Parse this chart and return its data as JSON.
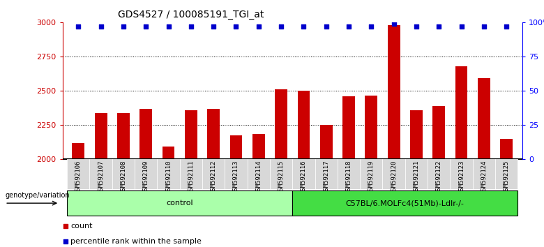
{
  "title": "GDS4527 / 100085191_TGI_at",
  "samples": [
    "GSM592106",
    "GSM592107",
    "GSM592108",
    "GSM592109",
    "GSM592110",
    "GSM592111",
    "GSM592112",
    "GSM592113",
    "GSM592114",
    "GSM592115",
    "GSM592116",
    "GSM592117",
    "GSM592118",
    "GSM592119",
    "GSM592120",
    "GSM592121",
    "GSM592122",
    "GSM592123",
    "GSM592124",
    "GSM592125"
  ],
  "counts": [
    2120,
    2340,
    2340,
    2370,
    2095,
    2360,
    2370,
    2175,
    2185,
    2510,
    2500,
    2250,
    2460,
    2465,
    2980,
    2360,
    2390,
    2680,
    2590,
    2150
  ],
  "percentile_ranks": [
    97,
    97,
    97,
    97,
    97,
    97,
    97,
    97,
    97,
    97,
    97,
    97,
    97,
    97,
    99,
    97,
    97,
    97,
    97,
    97
  ],
  "group_labels": [
    "control",
    "C57BL/6.MOLFc4(51Mb)-Ldlr-/-"
  ],
  "group_ranges": [
    [
      0,
      10
    ],
    [
      10,
      20
    ]
  ],
  "group_colors": [
    "#aaffaa",
    "#44dd44"
  ],
  "ylim": [
    2000,
    3000
  ],
  "right_ylim": [
    0,
    100
  ],
  "right_yticks": [
    0,
    25,
    50,
    75,
    100
  ],
  "right_yticklabels": [
    "0",
    "25",
    "50",
    "75",
    "100%"
  ],
  "left_yticks": [
    2000,
    2250,
    2500,
    2750,
    3000
  ],
  "bar_color": "#CC0000",
  "dot_color": "#0000CC",
  "dot_size": 18,
  "legend_count_label": "count",
  "legend_pct_label": "percentile rank within the sample",
  "genotype_label": "genotype/variation",
  "bar_width": 0.55,
  "tick_label_size": 6.5,
  "title_fontsize": 10,
  "xtick_bg": "#d8d8d8"
}
